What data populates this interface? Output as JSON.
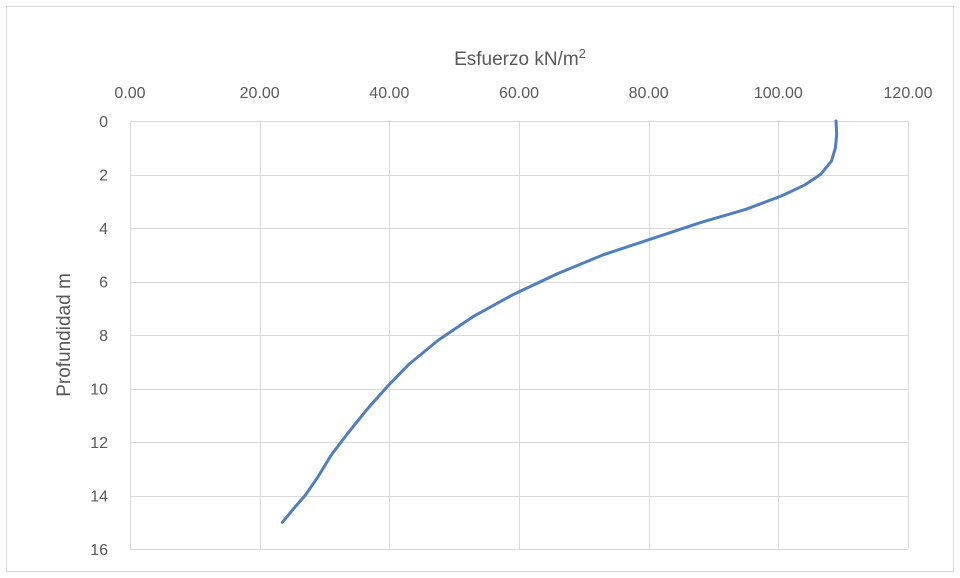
{
  "chart_data": {
    "type": "line",
    "xlabel_text": "Esfuerzo kN/m",
    "xlabel_sup": "2",
    "ylabel": "Profundidad m",
    "xlim": [
      0,
      120
    ],
    "ylim": [
      0,
      16
    ],
    "y_inverted": true,
    "x_axis_position": "top",
    "grid": true,
    "x_ticks": [
      "0.00",
      "20.00",
      "40.00",
      "60.00",
      "80.00",
      "100.00",
      "120.00"
    ],
    "y_ticks": [
      "0",
      "2",
      "4",
      "6",
      "8",
      "10",
      "12",
      "14",
      "16"
    ],
    "series": [
      {
        "color": "#4f7fbd",
        "x": [
          108.9,
          109.0,
          108.8,
          108.2,
          106.5,
          104.0,
          100.5,
          95.0,
          88.0,
          80.5,
          73.0,
          66.0,
          59.0,
          53.0,
          47.5,
          43.0,
          39.8,
          36.5,
          33.5,
          31.0,
          29.0,
          27.0,
          25.2,
          23.5
        ],
        "y": [
          0.0,
          0.5,
          1.0,
          1.5,
          2.0,
          2.4,
          2.8,
          3.3,
          3.8,
          4.4,
          5.0,
          5.7,
          6.5,
          7.3,
          8.2,
          9.1,
          9.9,
          10.8,
          11.7,
          12.5,
          13.3,
          14.0,
          14.5,
          15.0
        ]
      }
    ]
  }
}
